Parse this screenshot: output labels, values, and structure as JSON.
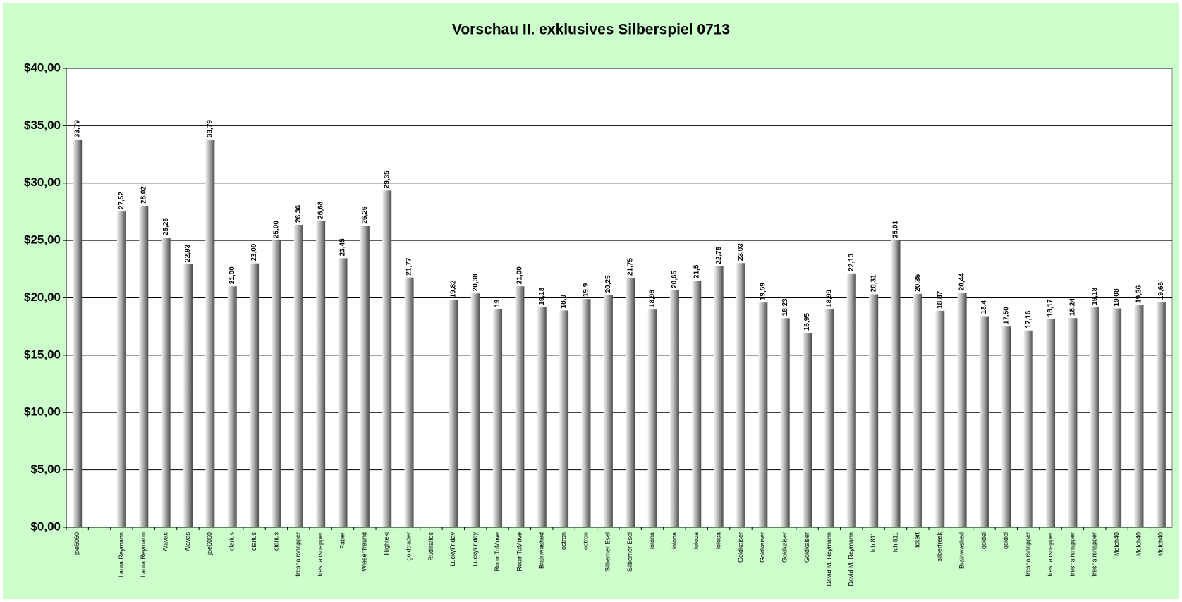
{
  "chart_data": {
    "type": "bar",
    "title": "Vorschau II. exklusives Silberspiel 0713",
    "categories": [
      "joe6060",
      null,
      "Laura Reymann",
      "Laura Reymann",
      "Alavas",
      "Alavas",
      "joe6060",
      "clarius",
      "clarius",
      "clarius",
      "freshairsnapper",
      "freshairsnapper",
      "Faber",
      "Wiesenfreund",
      "Highteki",
      "goldtrader",
      "Rudiratios",
      "LuckyFriday",
      "LuckyFriday",
      "RoomToMove",
      "RoomToMove",
      "Brainwashed",
      "octron",
      "octron",
      "Silberner Esel",
      "Silberner Esel",
      "lolooa",
      "lolooa",
      "lolooa",
      "lolooa",
      "Goldkaiser",
      "Goldkaiser",
      "Goldkaiser",
      "Goldkaiser",
      "David M. Reymann",
      "David M. Reymann",
      "Ichl811",
      "Ichl811",
      "Ickert",
      "silberfreak",
      "Brainwashed",
      "goldei",
      "goldei",
      "freshairsnapper",
      "freshairsnapper",
      "freshairsnapper",
      "freshairsnapper",
      "Molch40",
      "Molch40",
      "Molch40"
    ],
    "values": [
      33.79,
      null,
      27.52,
      28.02,
      25.25,
      22.93,
      33.79,
      21.0,
      23.0,
      25.0,
      26.36,
      26.68,
      23.45,
      26.26,
      29.35,
      21.77,
      null,
      19.82,
      20.38,
      19,
      21.0,
      19.18,
      18.9,
      19.9,
      20.25,
      21.75,
      18.98,
      20.65,
      21.5,
      22.75,
      23.03,
      19.59,
      18.23,
      16.95,
      18.99,
      22.13,
      20.31,
      25.01,
      20.35,
      18.87,
      20.44,
      18.4,
      17.5,
      17.16,
      18.17,
      18.24,
      19.18,
      19.08,
      19.36,
      19.66
    ],
    "value_labels": [
      "33,79",
      null,
      "27,52",
      "28,02",
      "25,25",
      "22,93",
      "33,79",
      "21,00",
      "23,00",
      "25,00",
      "26,36",
      "26,68",
      "23,45",
      "26,26",
      "29,35",
      "21,77",
      null,
      "19,82",
      "20,38",
      "19",
      "21,00",
      "19,18",
      "18,9",
      "19,9",
      "20,25",
      "21,75",
      "18,98",
      "20,65",
      "21,5",
      "22,75",
      "23,03",
      "19,59",
      "18,23",
      "16,95",
      "18,99",
      "22,13",
      "20,31",
      "25,01",
      "20,35",
      "18,87",
      "20,44",
      "18,4",
      "17,50",
      "17,16",
      "18,17",
      "18,24",
      "19,18",
      "19,08",
      "19,36",
      "19,66"
    ],
    "ylim": [
      0,
      40
    ],
    "yticks": [
      {
        "value": 0,
        "label": "$0,00"
      },
      {
        "value": 5,
        "label": "$5,00"
      },
      {
        "value": 10,
        "label": "$10,00"
      },
      {
        "value": 15,
        "label": "$15,00"
      },
      {
        "value": 20,
        "label": "$20,00"
      },
      {
        "value": 25,
        "label": "$25,00"
      },
      {
        "value": 30,
        "label": "$30,00"
      },
      {
        "value": 35,
        "label": "$35,00"
      },
      {
        "value": 40,
        "label": "$40,00"
      }
    ],
    "grid": true
  }
}
